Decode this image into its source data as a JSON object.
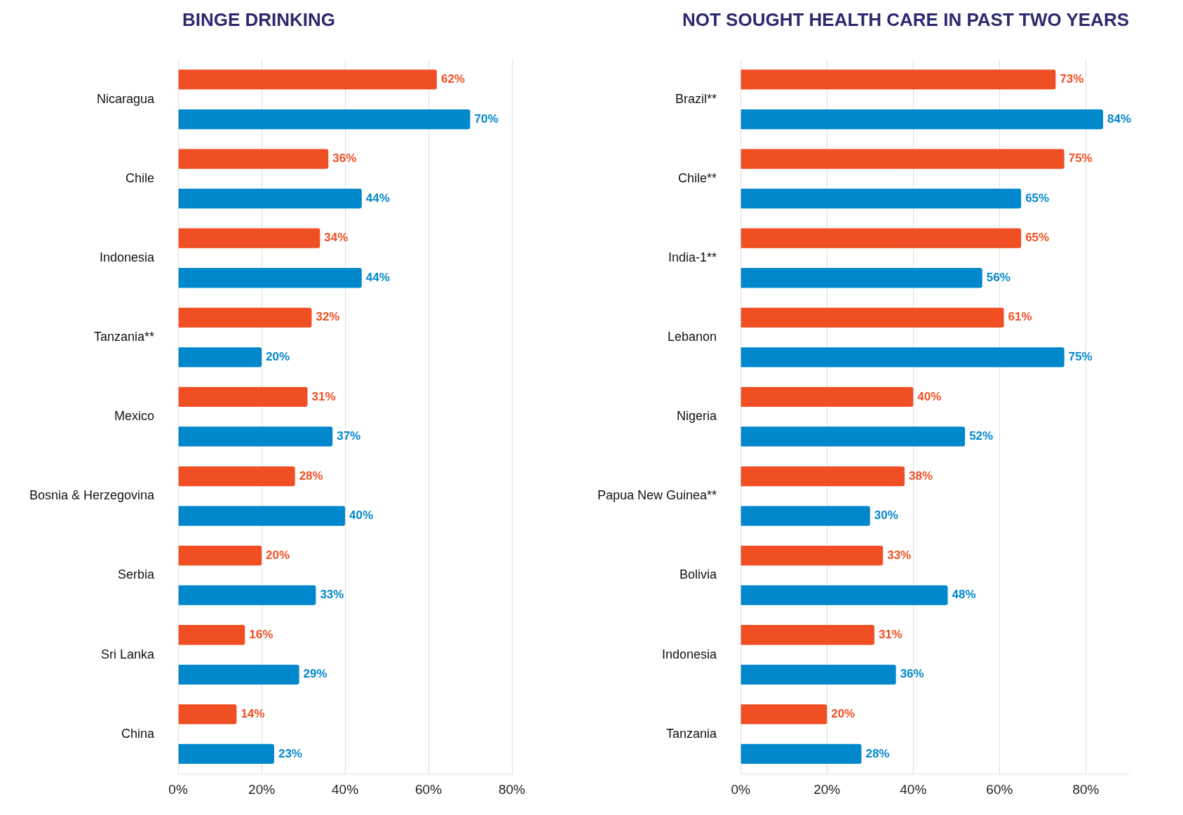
{
  "chart_data": [
    {
      "type": "bar",
      "orientation": "horizontal",
      "title": "BINGE DRINKING",
      "categories": [
        "Nicaragua",
        "Chile",
        "Indonesia",
        "Tanzania**",
        "Mexico",
        "Bosnia & Herzegovina",
        "Serbia",
        "Sri Lanka",
        "China"
      ],
      "series": [
        {
          "color": "#f04e23",
          "values": [
            62,
            36,
            34,
            32,
            31,
            28,
            20,
            16,
            14
          ],
          "value_labels": [
            "62%",
            "36%",
            "34%",
            "32%",
            "31%",
            "28%",
            "20%",
            "16%",
            "14%"
          ]
        },
        {
          "color": "#0087cc",
          "values": [
            70,
            44,
            44,
            20,
            37,
            40,
            33,
            29,
            23
          ],
          "value_labels": [
            "70%",
            "44%",
            "44%",
            "20%",
            "37%",
            "40%",
            "33%",
            "29%",
            "23%"
          ]
        }
      ],
      "xlim": [
        0,
        80
      ],
      "xticks": [
        {
          "value": 0,
          "label": "0%"
        },
        {
          "value": 20,
          "label": "20%"
        },
        {
          "value": 40,
          "label": "40%"
        },
        {
          "value": 60,
          "label": "60%"
        },
        {
          "value": 80,
          "label": "80%"
        }
      ],
      "grid": "x",
      "legend": false
    },
    {
      "type": "bar",
      "orientation": "horizontal",
      "title": "NOT SOUGHT HEALTH CARE IN PAST TWO YEARS",
      "categories": [
        "Brazil**",
        "Chile**",
        "India-1**",
        "Lebanon",
        "Nigeria",
        "Papua New Guinea**",
        "Bolivia",
        "Indonesia",
        "Tanzania"
      ],
      "series": [
        {
          "color": "#f04e23",
          "values": [
            73,
            75,
            65,
            61,
            40,
            38,
            33,
            31,
            20
          ],
          "value_labels": [
            "73%",
            "75%",
            "65%",
            "61%",
            "40%",
            "38%",
            "33%",
            "31%",
            "20%"
          ]
        },
        {
          "color": "#0087cc",
          "values": [
            84,
            65,
            56,
            75,
            52,
            30,
            48,
            36,
            28
          ],
          "value_labels": [
            "84%",
            "65%",
            "56%",
            "75%",
            "52%",
            "30%",
            "48%",
            "36%",
            "28%"
          ]
        }
      ],
      "xlim": [
        0,
        90
      ],
      "xticks": [
        {
          "value": 0,
          "label": "0%"
        },
        {
          "value": 20,
          "label": "20%"
        },
        {
          "value": 40,
          "label": "40%"
        },
        {
          "value": 60,
          "label": "60%"
        },
        {
          "value": 80,
          "label": "80%"
        }
      ],
      "grid": "x",
      "legend": false
    }
  ]
}
